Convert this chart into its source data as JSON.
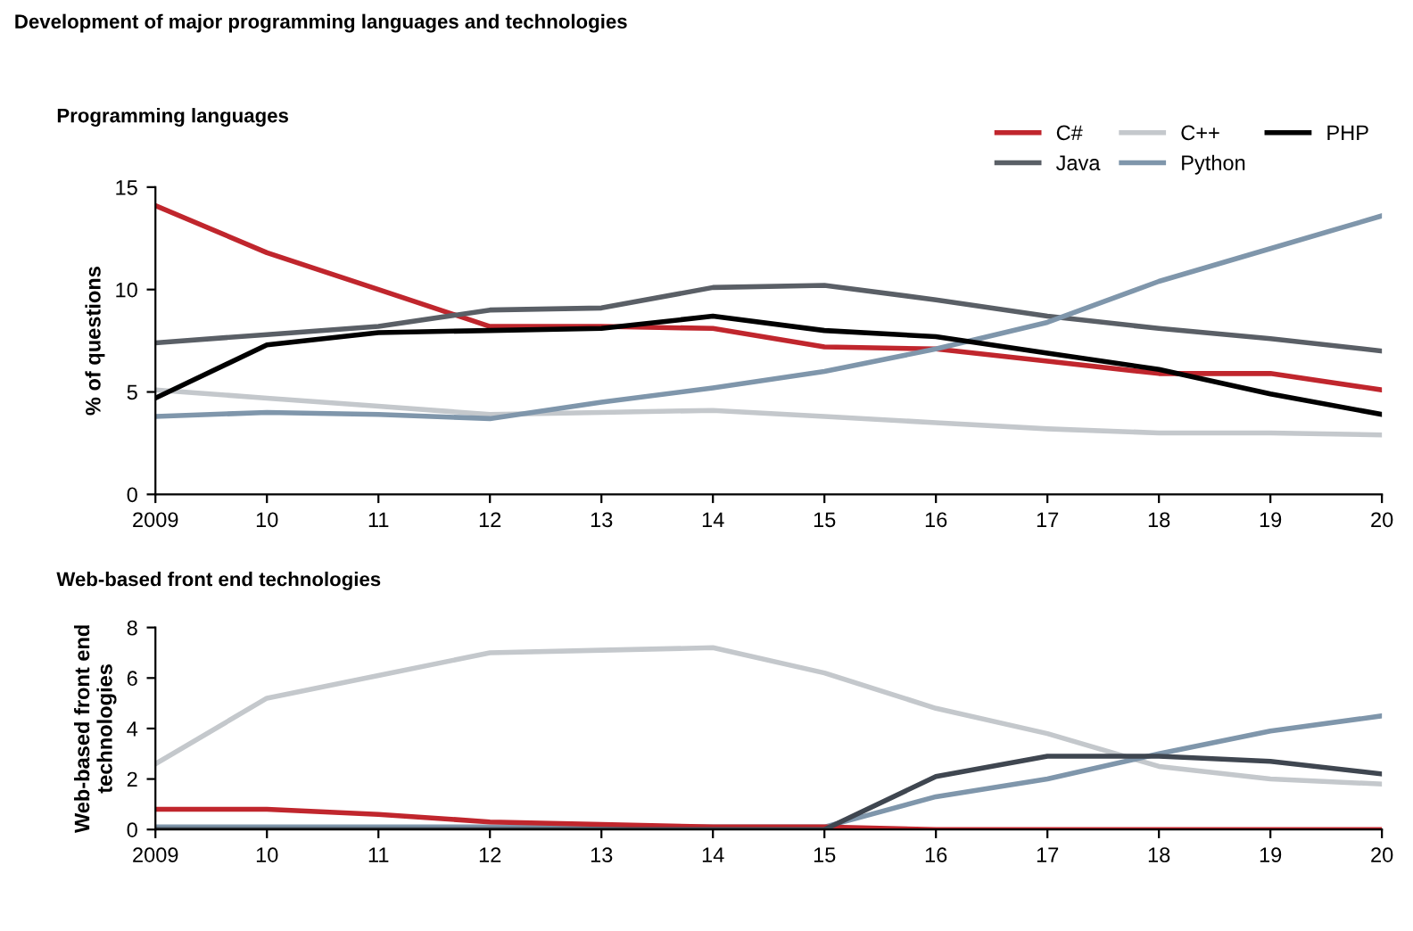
{
  "chart_data": [
    {
      "type": "line",
      "title": "Development of major programming languages and technologies",
      "subtitle": "Programming languages",
      "ylabel": "% of questions",
      "categories": [
        "2009",
        "10",
        "11",
        "12",
        "13",
        "14",
        "15",
        "16",
        "17",
        "18",
        "19",
        "20"
      ],
      "series": [
        {
          "name": "C#",
          "color": "#c0262d",
          "values": [
            14.1,
            11.8,
            10.0,
            8.2,
            8.2,
            8.1,
            7.2,
            7.1,
            6.5,
            5.9,
            5.9,
            5.1
          ]
        },
        {
          "name": "Java",
          "color": "#5a5f66",
          "values": [
            7.4,
            7.8,
            8.2,
            9.0,
            9.1,
            10.1,
            10.2,
            9.5,
            8.7,
            8.1,
            7.6,
            7.0
          ]
        },
        {
          "name": "C++",
          "color": "#c4c8cc",
          "values": [
            5.1,
            4.7,
            4.3,
            3.9,
            4.0,
            4.1,
            3.8,
            3.5,
            3.2,
            3.0,
            3.0,
            2.9
          ]
        },
        {
          "name": "Python",
          "color": "#7f96ab",
          "values": [
            3.8,
            4.0,
            3.9,
            3.7,
            4.5,
            5.2,
            6.0,
            7.1,
            8.4,
            10.4,
            12.0,
            13.6
          ]
        },
        {
          "name": "PHP",
          "color": "#000000",
          "values": [
            4.7,
            7.3,
            7.9,
            8.0,
            8.1,
            8.7,
            8.0,
            7.7,
            6.9,
            6.1,
            4.9,
            3.9
          ]
        }
      ],
      "ylim": [
        0,
        15
      ],
      "yticks": [
        0,
        5,
        10,
        15
      ],
      "grid": false,
      "legend": "top right",
      "marker": "none",
      "line_style": "solid"
    },
    {
      "type": "line",
      "title": "Web-based front end technologies",
      "ylabel": "Web-based front end\ntechnologies",
      "categories": [
        "2009",
        "10",
        "11",
        "12",
        "13",
        "14",
        "15",
        "16",
        "17",
        "18",
        "19",
        "20"
      ],
      "series": [
        {
          "color": "#c4c8cc",
          "values": [
            2.6,
            5.2,
            6.1,
            7.0,
            7.1,
            7.2,
            6.2,
            4.8,
            3.8,
            2.5,
            2.0,
            1.8
          ]
        },
        {
          "color": "#7f96ab",
          "values": [
            0.1,
            0.1,
            0.1,
            0.1,
            0.1,
            0.1,
            0.1,
            1.3,
            2.0,
            3.0,
            3.9,
            4.5
          ]
        },
        {
          "color": "#c0262d",
          "values": [
            0.8,
            0.8,
            0.6,
            0.3,
            0.2,
            0.1,
            0.1,
            0,
            0,
            0,
            0,
            0
          ]
        },
        {
          "color": "#3f4650",
          "values": [
            0,
            0,
            0,
            0,
            0,
            0,
            0,
            2.1,
            2.9,
            2.9,
            2.7,
            2.2
          ]
        }
      ],
      "ylim": [
        0,
        8
      ],
      "yticks": [
        0,
        2,
        4,
        6,
        8
      ],
      "grid": false,
      "legend": false,
      "marker": "none",
      "line_style": "solid"
    }
  ]
}
